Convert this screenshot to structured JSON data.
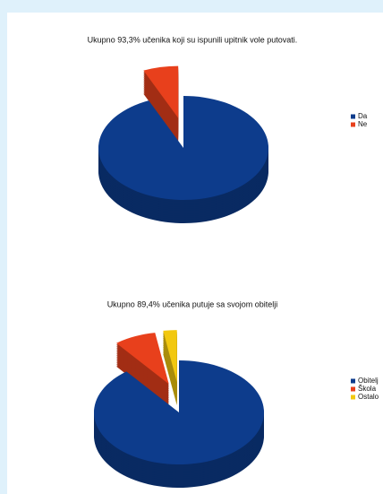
{
  "chart_data": [
    {
      "type": "pie",
      "title": "Ukupno 93,3% učenika koji su ispunili upitnik vole putovati.",
      "categories": [
        "Da",
        "Ne"
      ],
      "values": [
        93.3,
        6.7
      ],
      "colors": [
        "#0d3c8c",
        "#e8401c"
      ]
    },
    {
      "type": "pie",
      "title": "Ukupno 89,4% učenika putuje sa  svojom obitelji",
      "categories": [
        "Obitelj",
        "Škola",
        "Ostalo"
      ],
      "values": [
        89.4,
        8,
        2.6
      ],
      "colors": [
        "#0d3c8c",
        "#e8401c",
        "#f2c80f"
      ]
    }
  ]
}
